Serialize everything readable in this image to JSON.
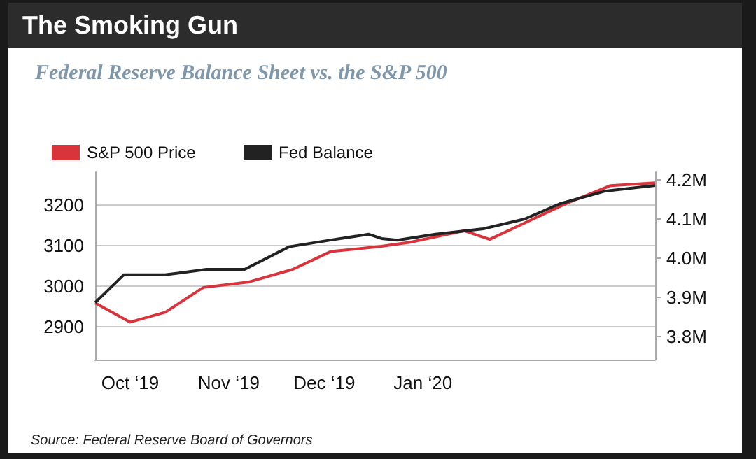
{
  "chart_data": {
    "type": "line",
    "title": "The Smoking Gun",
    "subtitle": "Federal Reserve Balance Sheet vs. the S&P 500",
    "annotations": [
      "Source: Federal Reserve Board of Governors"
    ],
    "xlim": [
      "2019-09-20",
      "2020-03-14"
    ],
    "xticks": [
      {
        "value": "2019-10-01",
        "label": "Oct ‘19"
      },
      {
        "value": "2019-11-01",
        "label": "Nov ‘19"
      },
      {
        "value": "2019-12-01",
        "label": "Dec ‘19"
      },
      {
        "value": "2020-01-01",
        "label": "Jan ‘20"
      }
    ],
    "ylim": [
      2820,
      3280
    ],
    "yticks": [
      2900,
      3000,
      3100,
      3200
    ],
    "y2lim": [
      3.74,
      4.22
    ],
    "y2ticks": [
      {
        "value": 3.8,
        "label": "3.8M"
      },
      {
        "value": 3.9,
        "label": "3.9M"
      },
      {
        "value": 4.0,
        "label": "4.0M"
      },
      {
        "value": 4.1,
        "label": "4.1M"
      },
      {
        "value": 4.2,
        "label": "4.2M"
      }
    ],
    "grid": "y",
    "legend": "top left",
    "series": [
      {
        "name": "S&P 500 Price",
        "color": "#d9333b",
        "x": [
          "2019-09-20",
          "2019-10-01",
          "2019-10-12",
          "2019-10-24",
          "2019-11-07",
          "2019-11-21",
          "2019-12-03",
          "2019-12-19",
          "2019-12-28",
          "2020-01-14",
          "2020-01-22",
          "2020-02-03",
          "2020-02-15",
          "2020-02-29",
          "2020-03-14"
        ],
        "values": [
          2959,
          2912,
          2936,
          2997,
          3010,
          3041,
          3085,
          3098,
          3108,
          3136,
          3115,
          3159,
          3203,
          3247,
          3254
        ]
      },
      {
        "name": "Fed Balance",
        "color": "#222222",
        "axis": "y2",
        "x": [
          "2019-09-20",
          "2019-09-29",
          "2019-10-12",
          "2019-10-25",
          "2019-11-06",
          "2019-11-20",
          "2019-12-03",
          "2019-12-15",
          "2019-12-19",
          "2019-12-24",
          "2020-01-05",
          "2020-01-20",
          "2020-02-02",
          "2020-02-13",
          "2020-02-27",
          "2020-03-14"
        ],
        "values": [
          3.886,
          3.957,
          3.957,
          3.971,
          3.971,
          4.029,
          4.046,
          4.061,
          4.05,
          4.046,
          4.061,
          4.075,
          4.1,
          4.139,
          4.171,
          4.186
        ]
      }
    ]
  }
}
